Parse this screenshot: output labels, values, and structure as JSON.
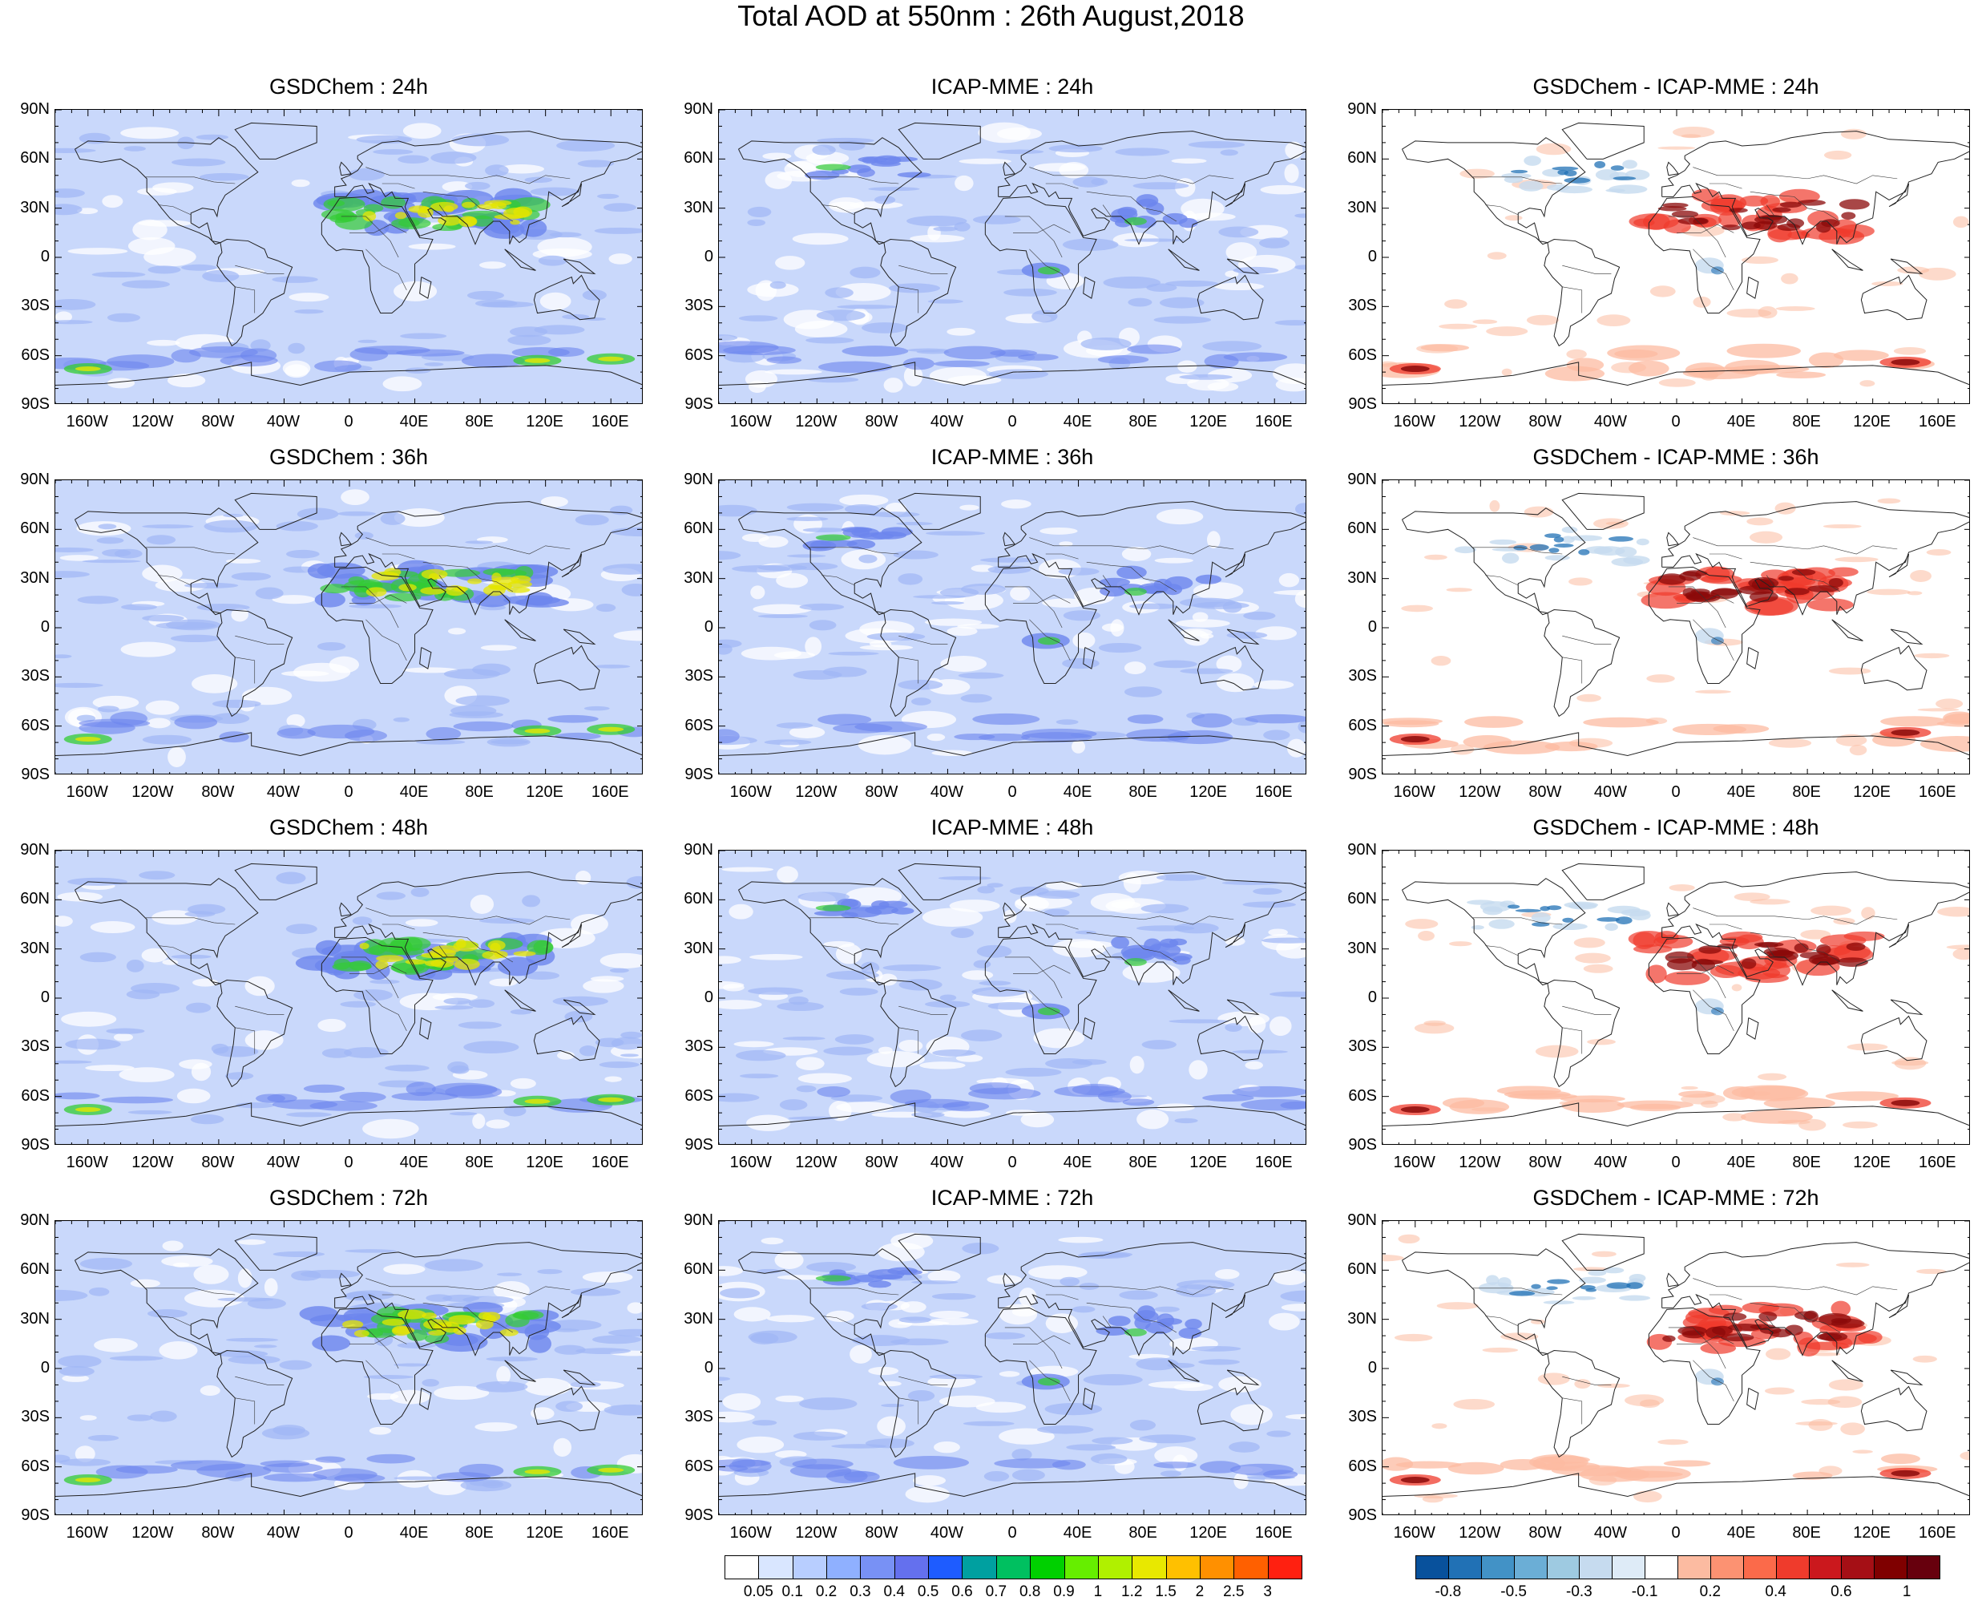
{
  "title": "Total AOD at 550nm : 26th August,2018",
  "lat_labels": [
    "90N",
    "60N",
    "30N",
    "0",
    "30S",
    "60S",
    "90S"
  ],
  "lon_labels": [
    "160W",
    "120W",
    "80W",
    "40W",
    "0",
    "40E",
    "80E",
    "120E",
    "160E"
  ],
  "rows": [
    {
      "lead": "24h",
      "titles": [
        "GSDChem : 24h",
        "ICAP-MME : 24h",
        "GSDChem - ICAP-MME : 24h"
      ]
    },
    {
      "lead": "36h",
      "titles": [
        "GSDChem : 36h",
        "ICAP-MME : 36h",
        "GSDChem - ICAP-MME : 36h"
      ]
    },
    {
      "lead": "48h",
      "titles": [
        "GSDChem : 48h",
        "ICAP-MME : 48h",
        "GSDChem - ICAP-MME : 48h"
      ]
    },
    {
      "lead": "72h",
      "titles": [
        "GSDChem : 72h",
        "ICAP-MME : 72h",
        "GSDChem - ICAP-MME : 72h"
      ]
    }
  ],
  "colorbars": {
    "aod": {
      "labels": [
        "0.05",
        "0.1",
        "0.2",
        "0.3",
        "0.4",
        "0.5",
        "0.6",
        "0.7",
        "0.8",
        "0.9",
        "1",
        "1.2",
        "1.5",
        "2",
        "2.5",
        "3"
      ],
      "colors": [
        "#ffffff",
        "#d9e6ff",
        "#b8ceff",
        "#8fb0ff",
        "#7891f5",
        "#6470ee",
        "#1e5cff",
        "#00a0a0",
        "#00c060",
        "#00d000",
        "#66ee00",
        "#b0f000",
        "#e8e800",
        "#ffc000",
        "#ff9000",
        "#ff6000",
        "#ff2010"
      ]
    },
    "diff": {
      "labels": [
        "-0.8",
        "-0.5",
        "-0.3",
        "-0.1",
        "0.2",
        "0.4",
        "0.6",
        "1"
      ],
      "colors": [
        "#08519c",
        "#2171b5",
        "#4292c6",
        "#6baed6",
        "#9ecae1",
        "#c6dbef",
        "#deebf7",
        "#ffffff",
        "#fcbba1",
        "#fc9272",
        "#fb6a4a",
        "#ef3b2c",
        "#cb181d",
        "#a50f15",
        "#7f0000",
        "#67000d"
      ]
    }
  },
  "map_colors": {
    "background_low": "#ffffff",
    "ocean_base": "#c9d8fb",
    "mid": "#9fb6f5",
    "high": "#6d86ee",
    "dust_green": "#33cc33",
    "dust_yellow": "#e6e600",
    "diff_red_light": "#fcbba1",
    "diff_red": "#ef3b2c",
    "diff_red_dark": "#8b0a0a",
    "diff_blue_light": "#c6dbef",
    "diff_blue": "#2171b5"
  }
}
